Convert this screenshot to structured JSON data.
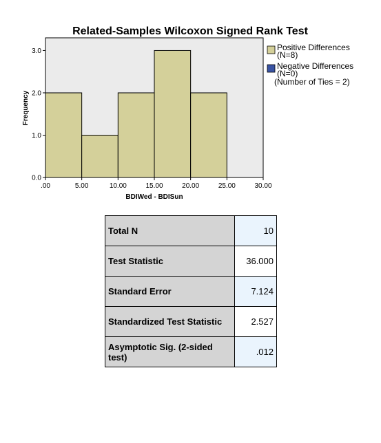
{
  "chart_data": {
    "type": "bar",
    "title": "Related-Samples Wilcoxon Signed Rank Test",
    "xlabel": "BDIWed - BDISun",
    "ylabel": "Frequency",
    "xlim": [
      0,
      30
    ],
    "ylim": [
      0,
      3.3
    ],
    "x_ticks": [
      ".00",
      "5.00",
      "10.00",
      "15.00",
      "20.00",
      "25.00",
      "30.00"
    ],
    "y_ticks": [
      "0.0",
      "1.0",
      "2.0",
      "3.0"
    ],
    "bins": [
      {
        "from": 0,
        "to": 5,
        "value": 2
      },
      {
        "from": 5,
        "to": 10,
        "value": 1
      },
      {
        "from": 10,
        "to": 15,
        "value": 2
      },
      {
        "from": 15,
        "to": 20,
        "value": 3
      },
      {
        "from": 20,
        "to": 25,
        "value": 2
      }
    ],
    "colors": {
      "positive": "#d4d09a",
      "negative": "#3a54a4",
      "plot_bg": "#ebebeb"
    },
    "legend": {
      "placement": "right",
      "entries": [
        {
          "label": "Positive Differences",
          "sub": "(N=8)",
          "color": "#d4d09a"
        },
        {
          "label": "Negative Differences",
          "sub": "(N=0)",
          "color": "#3a54a4"
        }
      ],
      "ties": "(Number of Ties = 2)"
    }
  },
  "stats": [
    {
      "label": "Total N",
      "value": "10"
    },
    {
      "label": "Test Statistic",
      "value": "36.000"
    },
    {
      "label": "Standard Error",
      "value": "7.124"
    },
    {
      "label": "Standardized Test Statistic",
      "value": "2.527"
    },
    {
      "label": "Asymptotic Sig. (2-sided test)",
      "value": ".012"
    }
  ]
}
